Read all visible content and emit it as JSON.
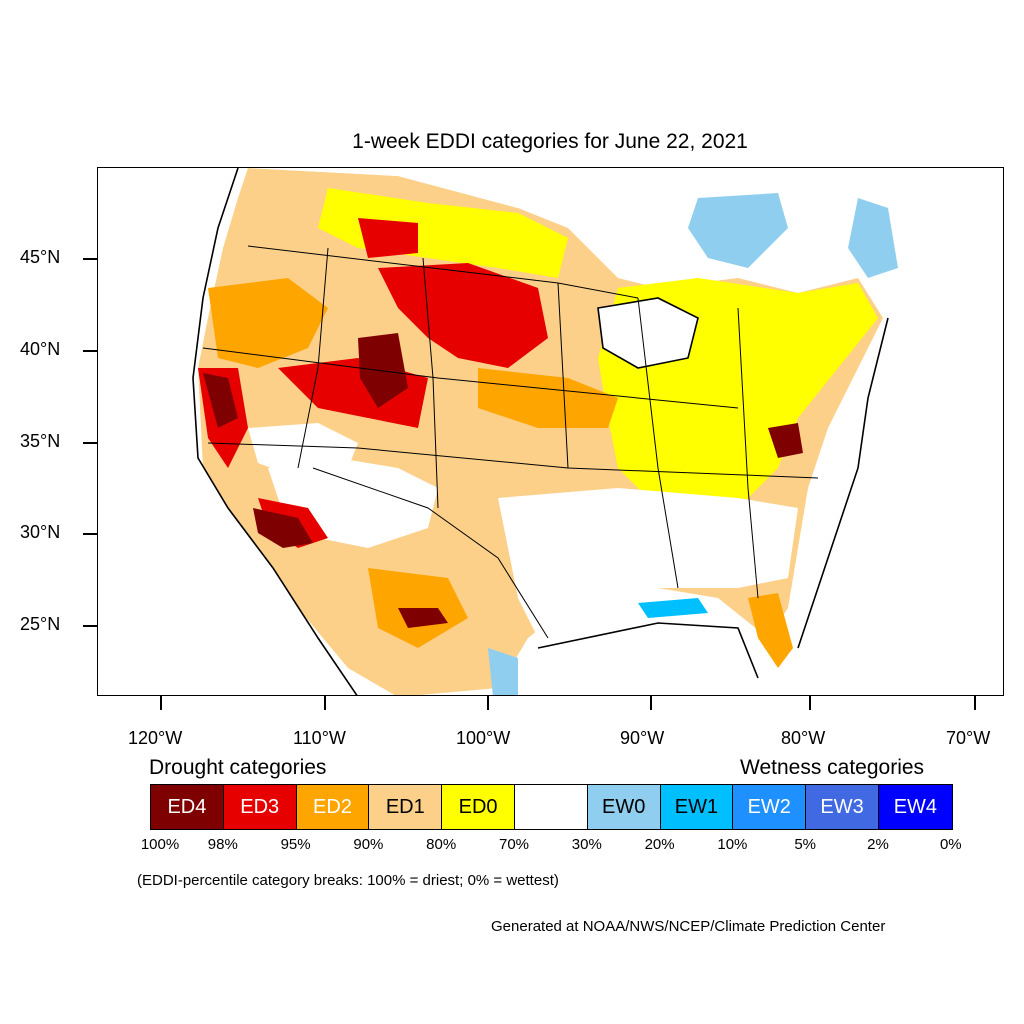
{
  "title": "1-week EDDI categories for June 22, 2021",
  "lat_labels": [
    "45°N",
    "40°N",
    "35°N",
    "30°N",
    "25°N"
  ],
  "lon_labels": [
    "120°W",
    "110°W",
    "100°W",
    "90°W",
    "80°W",
    "70°W"
  ],
  "legend": {
    "drought_title": "Drought categories",
    "wetness_title": "Wetness categories",
    "categories": [
      {
        "label": "ED4",
        "color": "#7f0000",
        "text_color": "#ffffff"
      },
      {
        "label": "ED3",
        "color": "#e60000",
        "text_color": "#ffffff"
      },
      {
        "label": "ED2",
        "color": "#ffa500",
        "text_color": "#ffffff"
      },
      {
        "label": "ED1",
        "color": "#fdd089",
        "text_color": "#000000"
      },
      {
        "label": "ED0",
        "color": "#ffff00",
        "text_color": "#000000"
      },
      {
        "label": "",
        "color": "#ffffff",
        "text_color": "#000000"
      },
      {
        "label": "EW0",
        "color": "#8fceef",
        "text_color": "#000000"
      },
      {
        "label": "EW1",
        "color": "#00bfff",
        "text_color": "#000000"
      },
      {
        "label": "EW2",
        "color": "#1e90ff",
        "text_color": "#ffffff"
      },
      {
        "label": "EW3",
        "color": "#4169e1",
        "text_color": "#ffffff"
      },
      {
        "label": "EW4",
        "color": "#0000ff",
        "text_color": "#ffffff"
      }
    ],
    "breaks": [
      "100%",
      "98%",
      "95%",
      "90%",
      "80%",
      "70%",
      "30%",
      "20%",
      "10%",
      "5%",
      "2%",
      "0%"
    ]
  },
  "note": "(EDDI-percentile category breaks: 100% = driest; 0% = wettest)",
  "credit": "Generated at NOAA/NWS/NCEP/Climate Prediction Center"
}
